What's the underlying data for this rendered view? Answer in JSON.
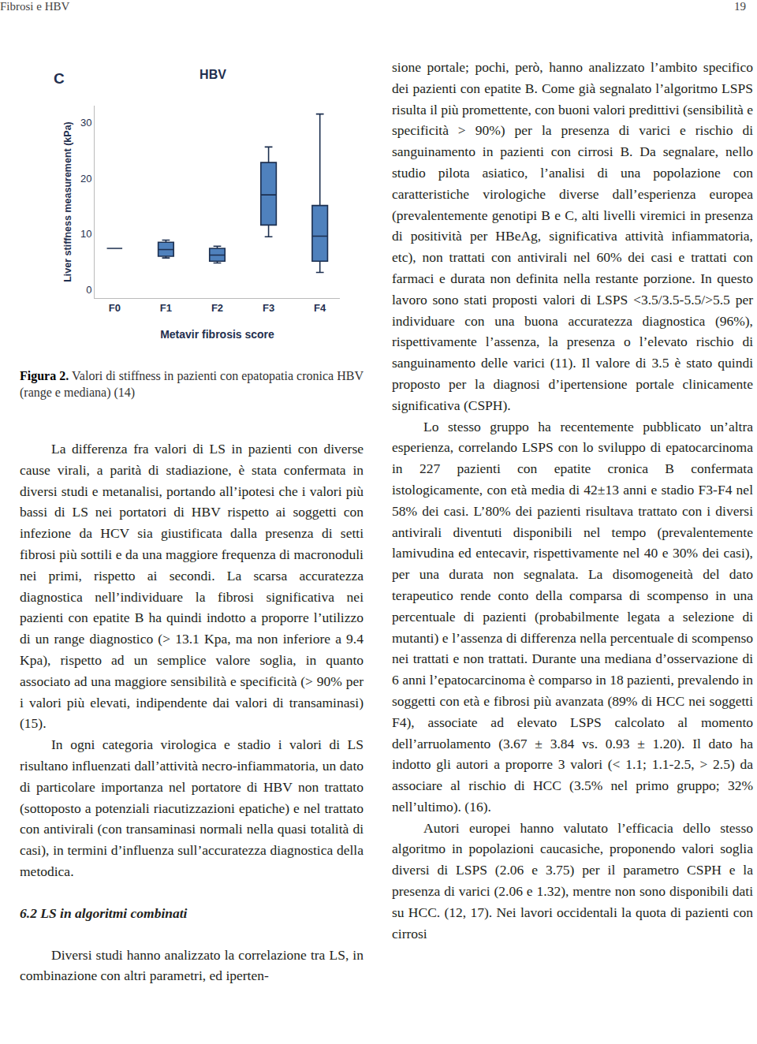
{
  "header": {
    "left": "Fibrosi e HBV",
    "page": "19"
  },
  "chart_data": {
    "type": "box",
    "title": "HBV",
    "annotations": [
      "C"
    ],
    "x_label": "Metavir fibrosis score",
    "y_label": "Liver stiffness measurement (kPa)",
    "categories": [
      "F0",
      "F1",
      "F2",
      "F3",
      "F4"
    ],
    "boxes": [
      {
        "min": 7.4,
        "q1": 7.4,
        "median": 7.4,
        "q3": 7.4,
        "max": 7.4
      },
      {
        "min": 5.7,
        "q1": 6.0,
        "median": 7.2,
        "q3": 8.5,
        "max": 8.9
      },
      {
        "min": 4.8,
        "q1": 5.1,
        "median": 6.2,
        "q3": 7.4,
        "max": 7.8
      },
      {
        "min": 9.5,
        "q1": 11.6,
        "median": 17.0,
        "q3": 22.8,
        "max": 25.6
      },
      {
        "min": 3.1,
        "q1": 5.1,
        "median": 9.6,
        "q3": 15.1,
        "max": 31.5
      }
    ],
    "color": "#4f81bd",
    "ylim": [
      -1.5,
      33
    ],
    "yticks": [
      0,
      10,
      20,
      30
    ],
    "grid": false
  },
  "left_column": [
    {
      "type": "caption",
      "label": "Figura 2.",
      "text": "Valori di stiffness in pazienti con epatopatia cronica HBV (range e mediana) (14)"
    },
    {
      "type": "paragraph",
      "text": "La differenza fra valori di LS in pazienti con diverse cause virali, a parità di stadiazione, è stata confermata in diversi studi e metanalisi, portando all’ipotesi che i valori più bassi di LS nei portatori di HBV rispetto ai soggetti con infezione da HCV sia giustificata dalla presenza di setti fibrosi più sottili e da una maggiore frequenza di macronoduli nei primi, rispetto ai secondi. La scarsa accuratezza diagnostica nell’individuare la fibrosi significativa nei pazienti con epatite B ha quindi indotto a proporre l’utilizzo di un range diagnostico (> 13.1 Kpa, ma non inferiore a 9.4 Kpa), rispetto ad un semplice valore soglia, in quanto associato ad una maggiore sensibilità e specificità (> 90% per i valori più elevati, indipendente dai valori di transaminasi) (15)."
    },
    {
      "type": "paragraph",
      "text": "In ogni categoria virologica e stadio i valori di LS risultano influenzati dall’attività necro-infiammatoria, un dato di particolare importanza nel portatore di HBV non trattato (sottoposto a potenziali riacutizzazioni epatiche) e nel trattato con antivirali (con transaminasi normali nella quasi totalità di casi), in termini d’influenza sull’accuratezza diagnostica della metodica."
    },
    {
      "type": "heading",
      "text": "6.2 LS in algoritmi combinati"
    },
    {
      "type": "paragraph",
      "text": "Diversi studi hanno analizzato la correlazione tra LS, in combinazione con altri parametri, ed iperten-"
    }
  ],
  "right_column": [
    {
      "type": "paragraph",
      "text": "sione portale; pochi, però, hanno analizzato l’ambito specifico dei pazienti con epatite B. Come già segnalato l’algoritmo LSPS risulta il più promettente, con buoni valori predittivi (sensibilità e specificità > 90%) per la presenza di varici e rischio di sanguinamento in pazienti con cirrosi B. Da segnalare, nello studio pilota asiatico, l’analisi di una popolazione con caratteristiche virologiche diverse dall’esperienza europea (prevalentemente genotipi B e C, alti livelli viremici in presenza di positività per HBeAg, significativa attività infiammatoria, etc), non trattati con antivirali nel 60% dei casi e trattati con farmaci e durata non definita nella restante porzione. In questo lavoro sono stati proposti valori di LSPS <3.5/3.5-5.5/>5.5 per individuare con una buona accuratezza diagnostica (96%), rispettivamente l’assenza, la presenza o l’elevato rischio di sanguinamento delle varici (11). Il valore di 3.5 è stato quindi proposto per la diagnosi d’ipertensione portale clinicamente significativa (CSPH)."
    },
    {
      "type": "paragraph",
      "text": "Lo stesso gruppo ha recentemente pubblicato un’altra esperienza, correlando LSPS con lo sviluppo di epatocarcinoma in 227 pazienti con epatite cronica B confermata istologicamente, con età media di 42±13 anni e stadio F3-F4 nel 58% dei casi. L’80% dei pazienti risultava trattato con i diversi antivirali diventuti disponibili nel tempo (prevalentemente lamivudina ed entecavir, rispettivamente nel 40 e 30% dei casi), per una durata non segnalata. La disomogeneità del dato terapeutico rende conto della comparsa di scompenso in una percentuale di pazienti (probabilmente legata a selezione di mutanti) e l’assenza di differenza nella percentuale di scompenso nei trattati e non trattati. Durante una mediana d’osservazione di 6 anni l’epatocarcinoma è comparso in 18 pazienti, prevalendo in soggetti con età e fibrosi più avanzata (89% di HCC nei soggetti F4), associate ad elevato LSPS calcolato al momento dell’arruolamento (3.67 ± 3.84 vs. 0.93 ± 1.20). Il dato ha indotto gli autori a proporre 3 valori (< 1.1; 1.1-2.5, > 2.5) da associare al rischio di HCC (3.5% nel primo gruppo; 32% nell’ultimo). (16)."
    },
    {
      "type": "paragraph",
      "text": "Autori europei hanno valutato l’efficacia dello stesso algoritmo in popolazioni caucasiche, proponendo valori soglia diversi di LSPS (2.06 e 3.75) per il parametro CSPH e la presenza di varici (2.06 e 1.32), mentre non sono disponibili dati su HCC. (12, 17). Nei lavori occidentali la quota di pazienti con cirrosi"
    }
  ]
}
